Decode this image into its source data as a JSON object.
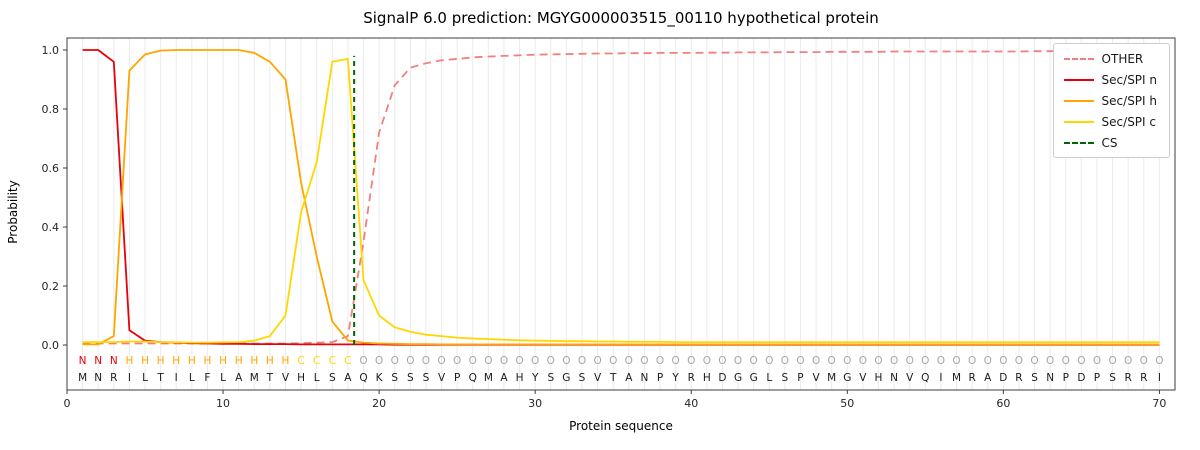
{
  "chart_data": {
    "type": "line",
    "title": "SignalP 6.0 prediction: MGYG000003515_00110 hypothetical protein",
    "xlabel": "Protein sequence",
    "ylabel": "Probability",
    "xlim": [
      0,
      71
    ],
    "ylim": [
      -0.15,
      1.04
    ],
    "x_ticks": [
      0,
      10,
      20,
      30,
      40,
      50,
      60,
      70
    ],
    "y_ticks": [
      0.0,
      0.2,
      0.4,
      0.6,
      0.8,
      1.0
    ],
    "grid": {
      "vertical_per_residue": true,
      "color": "#ebebeb"
    },
    "legend_position": "upper right",
    "x_positions_start": 1,
    "series": [
      {
        "name": "OTHER",
        "color": "#f08080",
        "dash": true,
        "values": [
          0.005,
          0.005,
          0.005,
          0.005,
          0.005,
          0.005,
          0.005,
          0.005,
          0.005,
          0.005,
          0.005,
          0.005,
          0.005,
          0.005,
          0.006,
          0.008,
          0.01,
          0.03,
          0.35,
          0.72,
          0.88,
          0.94,
          0.955,
          0.965,
          0.97,
          0.975,
          0.978,
          0.98,
          0.982,
          0.984,
          0.985,
          0.986,
          0.987,
          0.988,
          0.988,
          0.989,
          0.989,
          0.99,
          0.99,
          0.99,
          0.991,
          0.991,
          0.992,
          0.992,
          0.992,
          0.993,
          0.993,
          0.993,
          0.994,
          0.994,
          0.994,
          0.994,
          0.995,
          0.995,
          0.995,
          0.995,
          0.995,
          0.995,
          0.995,
          0.995,
          0.995,
          0.996,
          0.996,
          0.996,
          0.996,
          0.996,
          0.996,
          0.996,
          0.996,
          0.996
        ]
      },
      {
        "name": "Sec/SPI n",
        "color": "#e8000b",
        "dash": false,
        "values": [
          1.0,
          1.0,
          0.96,
          0.05,
          0.015,
          0.01,
          0.008,
          0.006,
          0.005,
          0.004,
          0.004,
          0.003,
          0.003,
          0.003,
          0.002,
          0.002,
          0.002,
          0.002,
          0.002,
          0.002,
          0.001,
          0.001,
          0.001,
          0.001,
          0.001,
          0.001,
          0.001,
          0.001,
          0.001,
          0.001,
          0.001,
          0.001,
          0.001,
          0.001,
          0.001,
          0.001,
          0.001,
          0.001,
          0.001,
          0.001,
          0.001,
          0.001,
          0.001,
          0.001,
          0.001,
          0.001,
          0.001,
          0.001,
          0.001,
          0.001,
          0.001,
          0.001,
          0.001,
          0.001,
          0.001,
          0.001,
          0.001,
          0.001,
          0.001,
          0.001,
          0.001,
          0.001,
          0.001,
          0.001,
          0.001,
          0.001,
          0.001,
          0.001,
          0.001,
          0.001
        ]
      },
      {
        "name": "Sec/SPI h",
        "color": "#ffa500",
        "dash": false,
        "values": [
          0.002,
          0.002,
          0.03,
          0.93,
          0.985,
          0.998,
          1.0,
          1.0,
          1.0,
          1.0,
          1.0,
          0.99,
          0.96,
          0.9,
          0.55,
          0.3,
          0.08,
          0.015,
          0.008,
          0.005,
          0.004,
          0.003,
          0.003,
          0.002,
          0.002,
          0.002,
          0.002,
          0.002,
          0.002,
          0.002,
          0.002,
          0.002,
          0.002,
          0.002,
          0.002,
          0.002,
          0.002,
          0.002,
          0.002,
          0.002,
          0.002,
          0.002,
          0.002,
          0.002,
          0.002,
          0.002,
          0.002,
          0.002,
          0.002,
          0.002,
          0.002,
          0.002,
          0.002,
          0.002,
          0.002,
          0.002,
          0.002,
          0.002,
          0.002,
          0.002,
          0.002,
          0.002,
          0.002,
          0.002,
          0.002,
          0.002,
          0.002,
          0.002,
          0.002,
          0.002
        ]
      },
      {
        "name": "Sec/SPI c",
        "color": "#ffd700",
        "dash": false,
        "values": [
          0.01,
          0.01,
          0.01,
          0.012,
          0.012,
          0.01,
          0.009,
          0.008,
          0.008,
          0.009,
          0.01,
          0.015,
          0.03,
          0.1,
          0.45,
          0.62,
          0.96,
          0.97,
          0.22,
          0.1,
          0.06,
          0.045,
          0.035,
          0.03,
          0.025,
          0.022,
          0.02,
          0.018,
          0.016,
          0.015,
          0.014,
          0.013,
          0.013,
          0.012,
          0.012,
          0.011,
          0.011,
          0.011,
          0.01,
          0.01,
          0.01,
          0.01,
          0.01,
          0.01,
          0.01,
          0.01,
          0.01,
          0.01,
          0.01,
          0.01,
          0.01,
          0.01,
          0.01,
          0.01,
          0.01,
          0.01,
          0.01,
          0.01,
          0.01,
          0.01,
          0.01,
          0.01,
          0.01,
          0.01,
          0.01,
          0.01,
          0.01,
          0.01,
          0.01,
          0.01
        ]
      }
    ],
    "cs_marker": {
      "name": "CS",
      "color": "#006400",
      "dash": true,
      "position": 18.4,
      "height": 0.98
    },
    "sequence": "MNRILTILFLAMTVHLSAQKSSSVPQMAHYSGSVTANPYRHDGGLSPVMGVHNVQIMRADRSNPDPSRRI",
    "sequence_color": "#1a1a1a",
    "regions": [
      {
        "label": "N",
        "color": "#e8000b",
        "start": 1,
        "end": 3
      },
      {
        "label": "H",
        "color": "#ffa500",
        "start": 4,
        "end": 14
      },
      {
        "label": "C",
        "color": "#ffd700",
        "start": 15,
        "end": 18
      },
      {
        "label": "O",
        "color": "#a6a6a6",
        "start": 19,
        "end": 70
      }
    ]
  }
}
